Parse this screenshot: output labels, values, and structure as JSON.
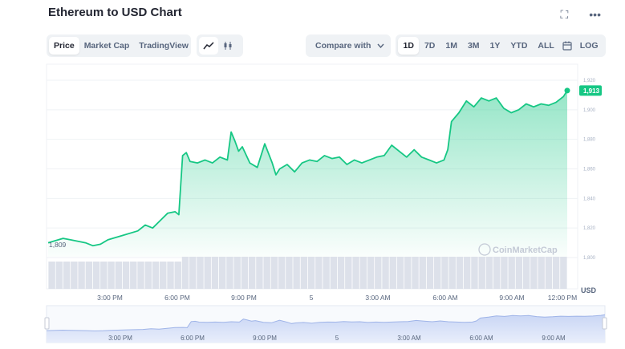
{
  "header": {
    "title": "Ethereum to USD Chart"
  },
  "icons": {
    "expand": "expand-icon",
    "more": "more-icon",
    "line": "line-chart-icon",
    "candle": "candlestick-icon",
    "calendar": "calendar-icon",
    "chevron": "chevron-down-icon"
  },
  "toolbar": {
    "tabs": [
      {
        "label": "Price",
        "active": true
      },
      {
        "label": "Market Cap"
      },
      {
        "label": "TradingView"
      }
    ],
    "compare_label": "Compare with",
    "ranges": [
      {
        "label": "1D",
        "active": true
      },
      {
        "label": "7D"
      },
      {
        "label": "1M"
      },
      {
        "label": "3M"
      },
      {
        "label": "1Y"
      },
      {
        "label": "YTD"
      },
      {
        "label": "ALL"
      }
    ],
    "log_label": "LOG"
  },
  "chart_data": {
    "type": "area",
    "yticks": [
      "1,920",
      "1,900",
      "1,880",
      "1,860",
      "1,840",
      "1,820",
      "1,800"
    ],
    "ylim": [
      1800,
      1920
    ],
    "start_label": "1,809",
    "current_label": "1,913",
    "watermark": "CoinMarketCap",
    "currency_label": "USD",
    "xticks": [
      "3:00 PM",
      "6:00 PM",
      "9:00 PM",
      "5",
      "3:00 AM",
      "6:00 AM",
      "9:00 AM",
      "12:00 PM"
    ],
    "navigator_ticks": [
      "3:00 PM",
      "6:00 PM",
      "9:00 PM",
      "5",
      "3:00 AM",
      "6:00 AM",
      "9:00 AM"
    ],
    "line_color": "#16c784",
    "fill_color": "#16c784",
    "volume_color": "#dde1ea",
    "price": [
      [
        0,
        1810
      ],
      [
        2,
        1813
      ],
      [
        3,
        1812
      ],
      [
        5,
        1810
      ],
      [
        6,
        1808
      ],
      [
        7,
        1809
      ],
      [
        8,
        1812
      ],
      [
        10,
        1815
      ],
      [
        12,
        1818
      ],
      [
        13,
        1822
      ],
      [
        14,
        1820
      ],
      [
        15,
        1825
      ],
      [
        16,
        1830
      ],
      [
        17,
        1831
      ],
      [
        17.5,
        1829
      ],
      [
        18,
        1869
      ],
      [
        18.5,
        1871
      ],
      [
        19,
        1865
      ],
      [
        20,
        1864
      ],
      [
        21,
        1866
      ],
      [
        22,
        1864
      ],
      [
        23,
        1868
      ],
      [
        24,
        1866
      ],
      [
        24.5,
        1885
      ],
      [
        25,
        1879
      ],
      [
        25.5,
        1872
      ],
      [
        26,
        1875
      ],
      [
        27,
        1864
      ],
      [
        28,
        1861
      ],
      [
        29,
        1877
      ],
      [
        30,
        1864
      ],
      [
        30.5,
        1856
      ],
      [
        31,
        1860
      ],
      [
        32,
        1863
      ],
      [
        33,
        1858
      ],
      [
        34,
        1864
      ],
      [
        35,
        1866
      ],
      [
        36,
        1865
      ],
      [
        37,
        1869
      ],
      [
        38,
        1867
      ],
      [
        39,
        1868
      ],
      [
        40,
        1863
      ],
      [
        41,
        1866
      ],
      [
        42,
        1864
      ],
      [
        43,
        1866
      ],
      [
        44,
        1868
      ],
      [
        45,
        1869
      ],
      [
        46,
        1876
      ],
      [
        47,
        1872
      ],
      [
        48,
        1868
      ],
      [
        49,
        1873
      ],
      [
        50,
        1868
      ],
      [
        51,
        1866
      ],
      [
        52,
        1864
      ],
      [
        53,
        1866
      ],
      [
        53.5,
        1873
      ],
      [
        54,
        1892
      ],
      [
        55,
        1898
      ],
      [
        56,
        1906
      ],
      [
        57,
        1902
      ],
      [
        58,
        1908
      ],
      [
        59,
        1906
      ],
      [
        60,
        1908
      ],
      [
        61,
        1901
      ],
      [
        62,
        1898
      ],
      [
        63,
        1900
      ],
      [
        64,
        1904
      ],
      [
        65,
        1902
      ],
      [
        66,
        1904
      ],
      [
        67,
        1903
      ],
      [
        68,
        1905
      ],
      [
        69,
        1909
      ],
      [
        69.5,
        1913
      ]
    ],
    "volume": [
      2,
      2,
      2,
      2,
      2,
      2,
      2,
      2,
      2,
      2,
      2,
      2,
      2,
      2,
      2,
      2,
      2,
      2,
      3,
      3,
      3,
      3,
      3,
      3,
      3,
      3,
      3,
      3,
      3,
      3,
      3,
      3,
      3,
      3,
      3,
      3,
      3,
      3,
      3,
      3,
      3,
      3,
      3,
      3,
      3,
      3,
      3,
      3,
      3,
      3,
      3,
      3,
      3,
      3,
      3,
      3,
      3,
      3,
      3,
      3,
      3,
      3,
      3,
      3,
      3,
      3,
      3,
      3,
      3,
      3
    ]
  }
}
